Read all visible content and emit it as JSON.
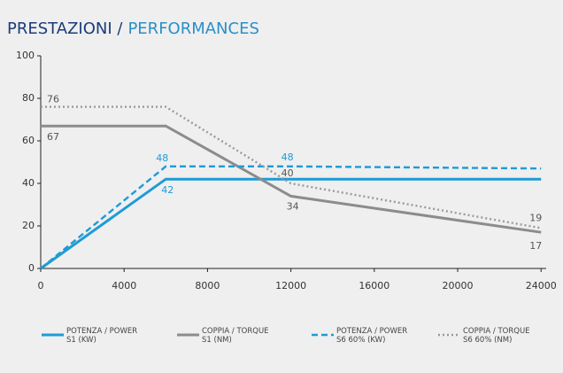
{
  "chart_data": {
    "type": "line",
    "title": [
      "PRESTAZIONI /",
      "PERFORMANCES"
    ],
    "xlim": [
      0,
      24500
    ],
    "xticks": [
      0,
      4000,
      8000,
      12000,
      16000,
      20000,
      24000
    ],
    "ylim": [
      0,
      100
    ],
    "yticks": [
      0,
      20,
      40,
      60,
      80,
      100
    ],
    "grid": false,
    "series": [
      {
        "name": [
          "POTENZA / POWER",
          "S1 (KW)"
        ],
        "color": "#1e9bd7",
        "dash": "solid",
        "x": [
          0,
          6000,
          12000,
          24000
        ],
        "values": [
          0,
          42,
          42,
          42
        ],
        "value_labels": [
          null,
          "42",
          null,
          null
        ]
      },
      {
        "name": [
          "COPPIA / TORQUE",
          "S1 (NM)"
        ],
        "color": "#8c8c8c",
        "dash": "solid",
        "x": [
          0,
          6000,
          12000,
          24000
        ],
        "values": [
          67,
          67,
          34,
          17
        ],
        "value_labels": [
          "67",
          null,
          "34",
          "17"
        ]
      },
      {
        "name": [
          "POTENZA / POWER",
          "S6 60% (KW)"
        ],
        "color": "#1e9bd7",
        "dash": "dashed",
        "x": [
          0,
          6000,
          12000,
          24000
        ],
        "values": [
          0,
          48,
          48,
          47
        ],
        "value_labels": [
          null,
          "48",
          "48",
          null
        ]
      },
      {
        "name": [
          "COPPIA / TORQUE",
          "S6 60% (NM)"
        ],
        "color": "#9a9a9a",
        "dash": "dotted",
        "x": [
          0,
          6000,
          12000,
          24000
        ],
        "values": [
          76,
          76,
          40,
          19
        ],
        "value_labels": [
          "76",
          null,
          "40",
          "19"
        ]
      }
    ]
  }
}
